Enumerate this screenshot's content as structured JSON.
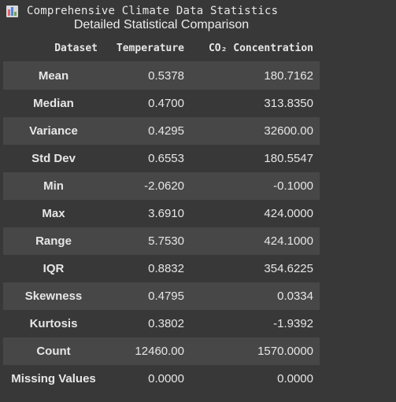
{
  "output": {
    "icon": "bar-chart-icon",
    "title": "Comprehensive Climate Data Statistics",
    "subtitle": "Detailed Statistical Comparison"
  },
  "table": {
    "headers": [
      "Dataset",
      "Temperature",
      "CO₂ Concentration"
    ],
    "rows": [
      {
        "label": "Mean",
        "temperature": "0.5378",
        "co2": "180.7162"
      },
      {
        "label": "Median",
        "temperature": "0.4700",
        "co2": "313.8350"
      },
      {
        "label": "Variance",
        "temperature": "0.4295",
        "co2": "32600.00"
      },
      {
        "label": "Std Dev",
        "temperature": "0.6553",
        "co2": "180.5547"
      },
      {
        "label": "Min",
        "temperature": "-2.0620",
        "co2": "-0.1000"
      },
      {
        "label": "Max",
        "temperature": "3.6910",
        "co2": "424.0000"
      },
      {
        "label": "Range",
        "temperature": "5.7530",
        "co2": "424.1000"
      },
      {
        "label": "IQR",
        "temperature": "0.8832",
        "co2": "354.6225"
      },
      {
        "label": "Skewness",
        "temperature": "0.4795",
        "co2": "0.0334"
      },
      {
        "label": "Kurtosis",
        "temperature": "0.3802",
        "co2": "-1.9392"
      },
      {
        "label": "Count",
        "temperature": "12460.00",
        "co2": "1570.0000"
      },
      {
        "label": "Missing Values",
        "temperature": "0.0000",
        "co2": "0.0000"
      }
    ]
  },
  "colors": {
    "background": "#383838",
    "row_stripe": "#474747",
    "text": "#e6e6e6"
  }
}
